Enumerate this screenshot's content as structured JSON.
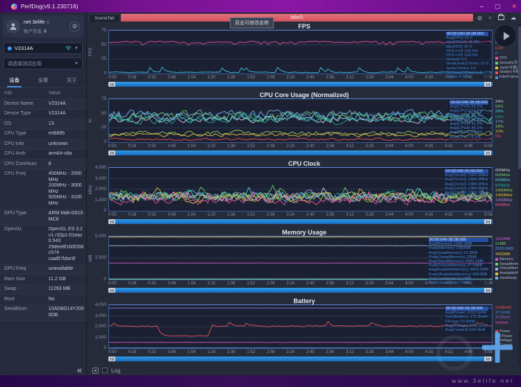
{
  "window": {
    "title": "PerfDog(v9.1.230716)",
    "controls": {
      "minimize": "–",
      "maximize": "▢",
      "close": "✕"
    }
  },
  "sidebar": {
    "user": {
      "name": "net 3elife",
      "name_badge": "⊙",
      "account_label": "账户信息"
    },
    "device_select": {
      "value": "V2314A"
    },
    "app_select": {
      "placeholder": "请选择测试应用"
    },
    "tabs": [
      {
        "label": "设备",
        "active": true
      },
      {
        "label": "设置",
        "active": false
      },
      {
        "label": "关于",
        "active": false
      }
    ],
    "info_table": {
      "headers": [
        "Info",
        "Value"
      ],
      "rows": [
        [
          "Device Name",
          "V2314A"
        ],
        [
          "Device Type",
          "V2314A"
        ],
        [
          "OS",
          "13"
        ],
        [
          "CPU Type",
          "mt6895"
        ],
        [
          "CPU Info",
          "unknown"
        ],
        [
          "CPU Arch",
          "arm64-v8a"
        ],
        [
          "CPU CoreNum",
          "8"
        ],
        [
          "CPU Freq",
          "450MHz - 2000MHz\n200MHz - 3000MHz\n500MHz - 3100MHz"
        ],
        [
          "GPU Type",
          "ARM Mali-G610 MC6"
        ],
        [
          "OpenGL",
          "OpenGL ES 3.2\nv1.r32p1-01eac0.543\n29dee8f160f268c574\ncaaf67bbe3f"
        ],
        [
          "GPU Freq",
          "unavailable"
        ],
        [
          "Ram Size",
          "11.2 GB"
        ],
        [
          "Swap",
          "11263 MB"
        ],
        [
          "Root",
          "No"
        ],
        [
          "SerialNum",
          "10AD8G14Y2000DB"
        ]
      ]
    },
    "collapse": "«"
  },
  "topbar": {
    "scene_tab_label": "SceneTab",
    "label_tab": "label1",
    "tooltip": "双击可修改名称",
    "icons": [
      {
        "name": "target-icon",
        "glyph": "◎"
      },
      {
        "name": "marker-icon",
        "glyph": "○"
      },
      {
        "name": "folder-icon",
        "glyph": "folder"
      },
      {
        "name": "cloud-icon",
        "glyph": "☁"
      }
    ]
  },
  "footer": {
    "log_label": "Log",
    "watermark": "www.3elife.net"
  },
  "x_ticks": [
    "0:00",
    "0:16",
    "0:32",
    "0:48",
    "1:04",
    "1:20",
    "1:36",
    "1:52",
    "2:08",
    "2:24",
    "2:40",
    "2:56",
    "3:12",
    "3:28",
    "3:44",
    "4:00",
    "4:16",
    "4:32",
    "4:48",
    "5:08"
  ],
  "chart_data": [
    {
      "type": "line",
      "title": "FPS",
      "ylabel": "FPS",
      "ylim": [
        0,
        75
      ],
      "yticks": [
        "75",
        "50",
        "25",
        "0"
      ],
      "grid": true,
      "legend_position": "right",
      "time_range": "00:00:040-05:08:000",
      "stats": [
        "Avg(FPS) 53.3",
        "Var(FPS)≥2 41.2%",
        "Min(FPS) 47.0",
        "FPS>=18 100.0%",
        "FPS>=25 100.0%",
        "Smooth 3.2",
        "SmallJank(/10min) 15.6",
        "Jank(/10min) 2.0",
        "BigJank(/10min) 2.3",
        "Stutter 0.07%"
      ],
      "right_values": [
        {
          "text": "57",
          "color": "#e09a3e"
        },
        {
          "text": "3.75",
          "color": "#6fcf6f"
        },
        {
          "text": "0",
          "color": "#4a90d9"
        },
        {
          "text": "0.00",
          "color": "#e85555"
        },
        {
          "text": "0",
          "color": "#4a90d9"
        }
      ],
      "legend": [
        {
          "label": "FPS",
          "color": "#f04fa0"
        },
        {
          "label": "Smooth(平滑度)",
          "color": "#6fcf6f"
        },
        {
          "label": "Jank(卡顿)",
          "color": "#e8c33d"
        },
        {
          "label": "Stutter(卡顿率)",
          "color": "#e85555"
        },
        {
          "label": "InterFrame",
          "color": "#4a90d9"
        }
      ],
      "series": [
        {
          "name": "FPS",
          "color": "#f04fa0",
          "base": 55,
          "noise": 2.5,
          "spike_p": 0.07,
          "spike_mag": -10
        },
        {
          "name": "InterFrame",
          "color": "#40c4e8",
          "base": 2,
          "noise": 1.2,
          "spike_p": 0.07,
          "spike_mag": 16
        }
      ]
    },
    {
      "type": "line",
      "title": "CPU Core Usage (Normalized)",
      "ylabel": "%",
      "ylim": [
        0,
        75
      ],
      "yticks": [
        "75",
        "50",
        "25",
        "0"
      ],
      "grid": true,
      "time_range": "00:00:040-05:08:000",
      "stats": [
        "Avg(CPU0) 50.2%",
        "Avg(CPU1) 51.6%",
        "Avg(CPU2) 48.3%",
        "Avg(CPU3) 49.9%",
        "Avg(CPU4) 43.3%",
        "Avg(CPU5) 44.1%",
        "Avg(CPU6) 54.4%",
        "Avg(CPU7) 8.3%"
      ],
      "right_values": [
        {
          "text": "34%",
          "color": "#d0d4dc"
        },
        {
          "text": "53%",
          "color": "#6fcf6f"
        },
        {
          "text": "29%",
          "color": "#4dd0e1"
        },
        {
          "text": "54%",
          "color": "#26a69a"
        },
        {
          "text": "17%",
          "color": "#7ab4e8"
        },
        {
          "text": "18%",
          "color": "#9ccc65"
        },
        {
          "text": "10%",
          "color": "#e8c33d"
        },
        {
          "text": "0%",
          "color": "#ef5350"
        }
      ],
      "legend": [],
      "series": [
        {
          "name": "CPU0",
          "color": "#d0d4dc",
          "base": 40,
          "noise": 10
        },
        {
          "name": "CPU1",
          "color": "#6fcf6f",
          "base": 46,
          "noise": 12
        },
        {
          "name": "CPU2",
          "color": "#4dd0e1",
          "base": 44,
          "noise": 14
        },
        {
          "name": "CPU3",
          "color": "#26a69a",
          "base": 40,
          "noise": 12
        },
        {
          "name": "CPU4",
          "color": "#7ab4e8",
          "base": 48,
          "noise": 13
        },
        {
          "name": "CPU5",
          "color": "#9ccc65",
          "base": 16,
          "noise": 6
        },
        {
          "name": "CPU6",
          "color": "#e8c33d",
          "base": 13,
          "noise": 5
        },
        {
          "name": "CPU7",
          "color": "#ef5350",
          "base": 5,
          "noise": 3
        }
      ]
    },
    {
      "type": "line",
      "title": "CPU Clock",
      "ylabel": "MHz",
      "ylim": [
        0,
        4000
      ],
      "yticks": [
        "4,000",
        "3,000",
        "2,000",
        "1,000",
        "0"
      ],
      "grid": true,
      "time_range": "00:00:040-05:08:000",
      "stats": [
        "Avg(Clock0) 1393.0MHz",
        "Avg(Clock1) 1394.3MHz",
        "Avg(Clock2) 1380.0MHz",
        "Avg(Clock3) 1384.0MHz",
        "Avg(Clock4) 1305.3MHz"
      ],
      "right_values": [
        {
          "text": "600MHz",
          "color": "#d0d4dc"
        },
        {
          "text": "600MHz",
          "color": "#6fcf6f"
        },
        {
          "text": "600MHz",
          "color": "#4dd0e1"
        },
        {
          "text": "600MHz",
          "color": "#26a69a"
        },
        {
          "text": "1400MHz",
          "color": "#9ccc65"
        },
        {
          "text": "1400MHz",
          "color": "#e8c33d"
        },
        {
          "text": "1400MHz",
          "color": "#b085d6"
        },
        {
          "text": "600MHz",
          "color": "#f0589a"
        }
      ],
      "legend": [],
      "series": [
        {
          "name": "Clock0",
          "color": "#d0d4dc",
          "base": 1350,
          "noise": 600,
          "spike_p": 0.05,
          "spike_mag": 1400
        },
        {
          "name": "Clock1",
          "color": "#6fcf6f",
          "base": 1400,
          "noise": 650,
          "spike_p": 0.05,
          "spike_mag": 1400
        },
        {
          "name": "Clock2",
          "color": "#4dd0e1",
          "base": 1350,
          "noise": 650,
          "spike_p": 0.05,
          "spike_mag": 1300
        },
        {
          "name": "Clock3",
          "color": "#26a69a",
          "base": 1380,
          "noise": 650
        },
        {
          "name": "Clock4",
          "color": "#e8c33d",
          "base": 1250,
          "noise": 700,
          "spike_p": 0.04,
          "spike_mag": 1500
        },
        {
          "name": "Clock5",
          "color": "#9ccc65",
          "base": 1250,
          "noise": 700
        },
        {
          "name": "Clock6",
          "color": "#b085d6",
          "base": 1300,
          "noise": 750
        },
        {
          "name": "Clock7",
          "color": "#f0589a",
          "base": 900,
          "noise": 500,
          "spike_p": 0.05,
          "spike_mag": 1800
        }
      ]
    },
    {
      "type": "line",
      "title": "Memory Usage",
      "ylabel": "MB",
      "ylim": [
        0,
        5000
      ],
      "yticks": [
        "5,000",
        "2,500",
        "0"
      ],
      "grid": true,
      "time_range": "00:00:040-05:08:000",
      "stats": [
        "Avg(Memory) 1982.0MB",
        "Peak(Memory) 1993MB",
        "Avg(SwapMemory) 21.8MB",
        "Peak(SwapMemory) 23MB",
        "Avg(VirtualMemory) 3683.1MB",
        "Peak(VirtualMemory) 3779MB",
        "Avg(AvailableMemory) 4903.6MB",
        "Peak(AvailableMemory) 4991MB",
        "Avg(JavaHeap) 64.6MB",
        "Peak(JavaHeap) 71MB"
      ],
      "right_values": [
        {
          "text": "1912MB",
          "color": "#c75cc7"
        },
        {
          "text": "21MB",
          "color": "#6fcf6f"
        },
        {
          "text": "3950.8MB",
          "color": "#4a90d9"
        },
        {
          "text": "4932MB",
          "color": "#e8c33d"
        }
      ],
      "legend": [
        {
          "label": "Memory",
          "color": "#c75cc7"
        },
        {
          "label": "SwapMemory",
          "color": "#6fcf6f"
        },
        {
          "label": "VirtualMemory",
          "color": "#9fb6d8"
        },
        {
          "label": "AvailableMemory",
          "color": "#e8c33d"
        },
        {
          "label": "JavaHeap",
          "color": "#7ab4e8"
        }
      ],
      "series": [
        {
          "name": "AvailableMemory",
          "color": "#e8c33d",
          "base": 4930,
          "noise": 12
        },
        {
          "name": "VirtualMemory",
          "color": "#9fb6d8",
          "base": 3930,
          "noise": 25
        },
        {
          "name": "Memory",
          "color": "#c75cc7",
          "base": 1912,
          "noise": 14
        },
        {
          "name": "JavaHeap",
          "color": "#7ab4e8",
          "base": 70,
          "noise": 3
        },
        {
          "name": "SwapMemory",
          "color": "#6fcf6f",
          "base": 25,
          "noise": 2
        }
      ]
    },
    {
      "type": "line",
      "title": "Battery",
      "ylabel": "",
      "ylim": [
        0,
        4000
      ],
      "yticks": [
        "4,000",
        "3,000",
        "2,000",
        "1,000",
        "0"
      ],
      "grid": true,
      "time_range": "00:00:040-05:08:000",
      "stats": [
        "Avg(Power) 2032.5mW",
        "Sum(Battery) 171.8mAh",
        "FPower 23.5mW",
        "Avg(Voltage) 3733.5mV",
        "Avg(Current) 534.4mA"
      ],
      "right_values": [
        {
          "text": "2158mW",
          "color": "#e85555"
        },
        {
          "text": "27.5mW",
          "color": "#4a90d9"
        },
        {
          "text": "3732mV",
          "color": "#9575cd"
        },
        {
          "text": "564mA",
          "color": "#d64fc0"
        }
      ],
      "legend": [
        {
          "label": "Power",
          "color": "#e85555"
        },
        {
          "label": "FPower",
          "color": "#4a90d9"
        },
        {
          "label": "Voltage",
          "color": "#9575cd"
        },
        {
          "label": "Current",
          "color": "#d64fc0"
        }
      ],
      "series": [
        {
          "name": "Voltage",
          "color": "#9575cd",
          "base": 3732,
          "noise": 8
        },
        {
          "name": "Power",
          "color": "#e85555",
          "base": 2050,
          "noise": 110,
          "spike_p": 0.03,
          "spike_mag": 750,
          "dip": {
            "from": 0.13,
            "to": 0.26,
            "value": 1150
          }
        },
        {
          "name": "Current",
          "color": "#d64fc0",
          "base": 540,
          "noise": 22
        },
        {
          "name": "FPower",
          "color": "#4a90d9",
          "base": 30,
          "noise": 8
        }
      ]
    }
  ]
}
